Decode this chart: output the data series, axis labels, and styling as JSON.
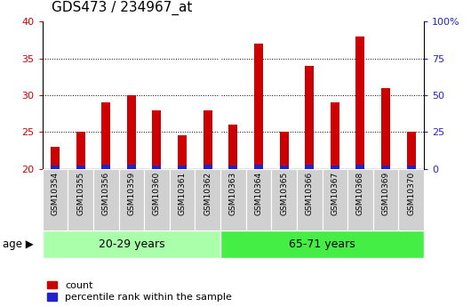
{
  "title": "GDS473 / 234967_at",
  "samples": [
    "GSM10354",
    "GSM10355",
    "GSM10356",
    "GSM10359",
    "GSM10360",
    "GSM10361",
    "GSM10362",
    "GSM10363",
    "GSM10364",
    "GSM10365",
    "GSM10366",
    "GSM10367",
    "GSM10368",
    "GSM10369",
    "GSM10370"
  ],
  "count_values": [
    23,
    25,
    29,
    30,
    28,
    24.5,
    28,
    26,
    37,
    25,
    34,
    29,
    38,
    31,
    25
  ],
  "percentile_values": [
    2,
    2,
    3,
    3,
    2,
    2,
    3,
    2,
    3,
    2,
    3,
    2,
    3,
    2,
    2
  ],
  "ylim_left": [
    20,
    40
  ],
  "ylim_right": [
    0,
    100
  ],
  "yticks_left": [
    20,
    25,
    30,
    35,
    40
  ],
  "yticks_right": [
    0,
    25,
    50,
    75,
    100
  ],
  "group1_label": "20-29 years",
  "group2_label": "65-71 years",
  "group1_count": 7,
  "group2_count": 8,
  "age_label": "age",
  "bar_color_red": "#cc0000",
  "bar_color_blue": "#2222cc",
  "bg_plot": "#ffffff",
  "bg_xlabels": "#d0d0d0",
  "bg_group1": "#aaffaa",
  "bg_group2": "#44ee44",
  "legend_count": "count",
  "legend_percentile": "percentile rank within the sample",
  "bar_width": 0.35,
  "title_fontsize": 11,
  "tick_fontsize": 8,
  "label_fontsize": 8
}
